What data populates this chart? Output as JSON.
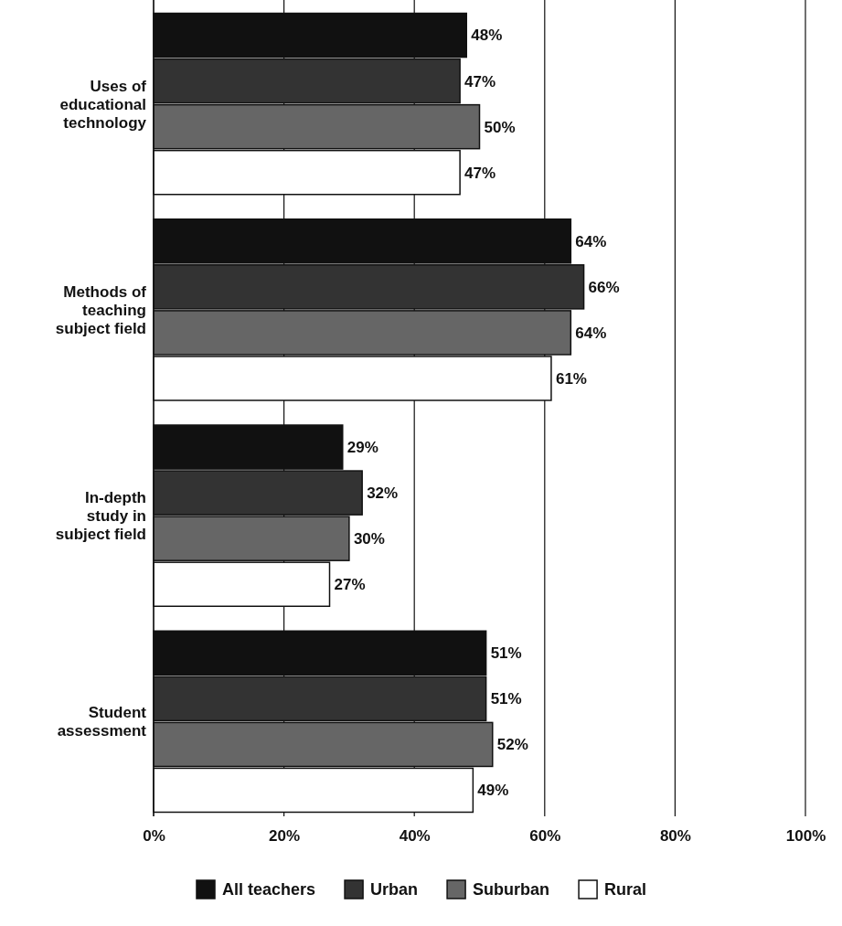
{
  "chart_data": {
    "type": "bar",
    "orientation": "horizontal",
    "categories": [
      "Uses of educational technology",
      "Methods of teaching subject field",
      "In-depth study in subject field",
      "Student assessment"
    ],
    "series": [
      {
        "name": "All teachers",
        "color": "#111111",
        "values": [
          48,
          64,
          29,
          51
        ],
        "value_labels": [
          "48%",
          "64%",
          "29%",
          "51%"
        ]
      },
      {
        "name": "Urban",
        "color": "#333333",
        "values": [
          47,
          66,
          32,
          51
        ],
        "value_labels": [
          "47%",
          "66%",
          "32%",
          "51%"
        ]
      },
      {
        "name": "Suburban",
        "color": "#666666",
        "values": [
          50,
          64,
          30,
          52
        ],
        "value_labels": [
          "50%",
          "64%",
          "30%",
          "52%"
        ]
      },
      {
        "name": "Rural",
        "color": "#ffffff",
        "values": [
          47,
          61,
          27,
          49
        ],
        "value_labels": [
          "47%",
          "61%",
          "27%",
          "49%"
        ]
      }
    ],
    "xlim": [
      0,
      100
    ],
    "xticks": [
      {
        "value": 0,
        "label": "0%"
      },
      {
        "value": 20,
        "label": "20%"
      },
      {
        "value": 40,
        "label": "40%"
      },
      {
        "value": 60,
        "label": "60%"
      },
      {
        "value": 80,
        "label": "80%"
      },
      {
        "value": 100,
        "label": "100%"
      }
    ],
    "grid": "x",
    "legend": "bottom"
  }
}
